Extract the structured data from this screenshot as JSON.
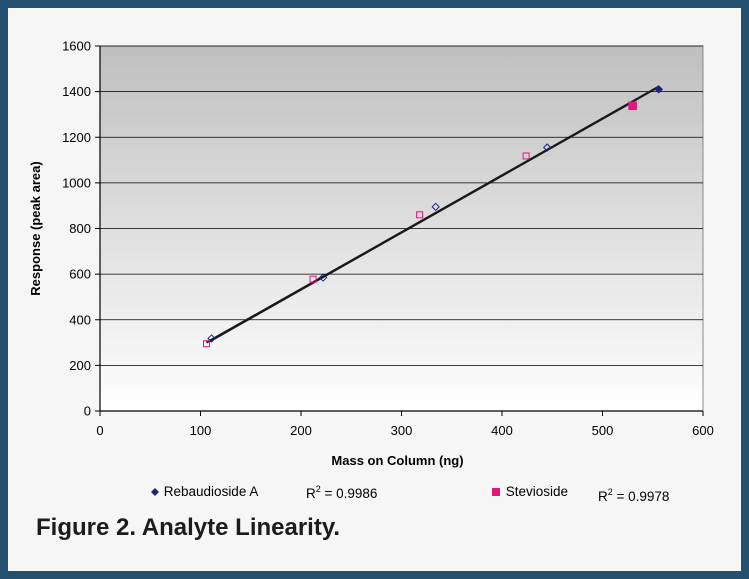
{
  "chart_data": {
    "type": "scatter",
    "xlabel": "Mass on Column (ng)",
    "ylabel": "Response (peak area)",
    "xlim": [
      0,
      600
    ],
    "ylim": [
      0,
      1600
    ],
    "x_ticks": [
      "0",
      "100",
      "200",
      "300",
      "400",
      "500",
      "600"
    ],
    "y_ticks": [
      "0",
      "200",
      "400",
      "600",
      "800",
      "1000",
      "1200",
      "1400",
      "1600"
    ],
    "grid": "horizontal",
    "legend_position": "bottom",
    "series": [
      {
        "name": "Rebaudioside A",
        "marker": "diamond",
        "color": "#1a237e",
        "x": [
          111,
          222,
          334,
          445,
          556
        ],
        "y": [
          318,
          585,
          895,
          1155,
          1410
        ],
        "r_squared": "R² = 0.9986",
        "trendline": {
          "x": [
            109,
            556
          ],
          "y": [
            305,
            1422
          ]
        }
      },
      {
        "name": "Stevioside",
        "marker": "square",
        "color": "#e0197d",
        "x": [
          106,
          212,
          318,
          424,
          530
        ],
        "y": [
          295,
          578,
          860,
          1118,
          1338
        ],
        "r_squared": "R² = 0.9978",
        "trendline": {
          "x": [
            106,
            530
          ],
          "y": [
            300,
            1356
          ]
        }
      }
    ]
  },
  "legend": {
    "series_a_label": "Rebaudioside A",
    "series_a_r2_prefix": "R",
    "series_a_r2_value": " = 0.9986",
    "series_b_label": "Stevioside",
    "series_b_r2_prefix": "R",
    "series_b_r2_value": " = 0.9978",
    "superscript": "2"
  },
  "caption": "Figure 2. Analyte Linearity.",
  "colors": {
    "frame": "#24506f",
    "plot_top": "#bfbfbf",
    "plot_bottom": "#ffffff",
    "trendline": "#1a1a1a"
  }
}
